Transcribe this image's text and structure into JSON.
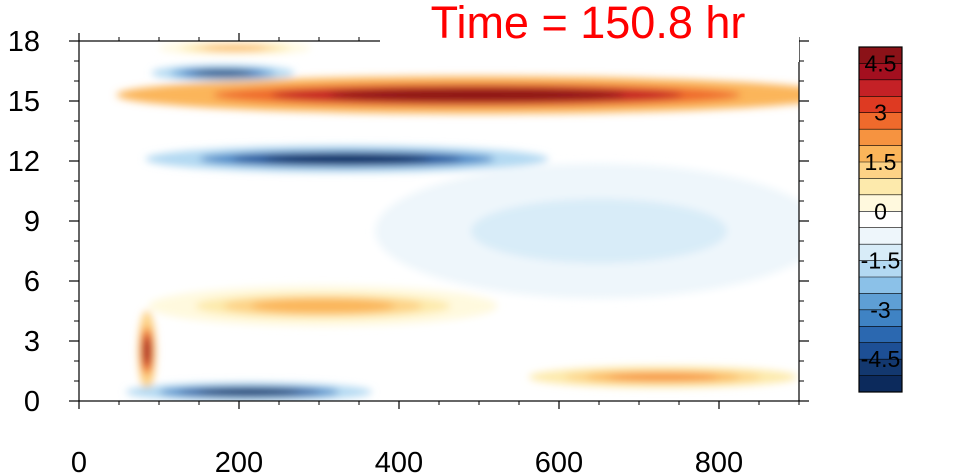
{
  "title": "Time = 150.8 hr",
  "colors": {
    "title": "#ff0000",
    "palette": [
      "#0c2a5c",
      "#13386f",
      "#1d4f95",
      "#2b68b0",
      "#3f83c4",
      "#5e9fd5",
      "#8bc1e8",
      "#b3d9f2",
      "#d8ecf8",
      "#eef6fb",
      "#ffffff",
      "#fff9de",
      "#fdeaac",
      "#fdd286",
      "#fbb55a",
      "#f69340",
      "#ef6a2c",
      "#de3a22",
      "#c42126",
      "#a30f1f",
      "#8b1218"
    ]
  },
  "chart_data": {
    "type": "heatmap",
    "title": "Time = 150.8 hr",
    "xlabel": "",
    "ylabel": "",
    "xlim": [
      0,
      900
    ],
    "ylim": [
      0,
      18
    ],
    "x_ticks": [
      "0",
      "200",
      "400",
      "600",
      "800"
    ],
    "x_tick_values": [
      0,
      200,
      400,
      600,
      800
    ],
    "y_ticks": [
      "0",
      "3",
      "6",
      "9",
      "12",
      "15",
      "18"
    ],
    "y_tick_values": [
      0,
      3,
      6,
      9,
      12,
      15,
      18
    ],
    "colorbar": {
      "levels": [
        -5,
        -4.5,
        -4,
        -3.5,
        -3,
        -2.5,
        -2,
        -1.5,
        -1,
        -0.5,
        0,
        0.5,
        1,
        1.5,
        2,
        2.5,
        3,
        3.5,
        4,
        4.5
      ],
      "labeled": [
        "4.5",
        "3",
        "1.5",
        "0",
        "-1.5",
        "-3",
        "-4.5"
      ],
      "labeled_values": [
        4.5,
        3,
        1.5,
        0,
        -1.5,
        -3,
        -4.5
      ]
    },
    "features": [
      {
        "x": [
          95,
          900
        ],
        "y": [
          14.6,
          16.0
        ],
        "value": 5.0,
        "note": "positive band"
      },
      {
        "x": [
          110,
          560
        ],
        "y": [
          11.6,
          12.6
        ],
        "value": -5.0,
        "note": "negative band"
      },
      {
        "x": [
          100,
          260
        ],
        "y": [
          16.1,
          16.7
        ],
        "value": -4.5
      },
      {
        "x": [
          110,
          280
        ],
        "y": [
          17.4,
          17.9
        ],
        "value": 2.0
      },
      {
        "x": [
          75,
          95
        ],
        "y": [
          1.0,
          4.0
        ],
        "value": 4.5
      },
      {
        "x": [
          75,
          350
        ],
        "y": [
          0.1,
          0.8
        ],
        "value": -5.0
      },
      {
        "x": [
          110,
          500
        ],
        "y": [
          4.0,
          5.5
        ],
        "value": 2.0
      },
      {
        "x": [
          580,
          880
        ],
        "y": [
          0.8,
          1.6
        ],
        "value": 2.5
      },
      {
        "x": [
          400,
          900
        ],
        "y": [
          6.0,
          11.0
        ],
        "value": -1.0
      }
    ]
  }
}
